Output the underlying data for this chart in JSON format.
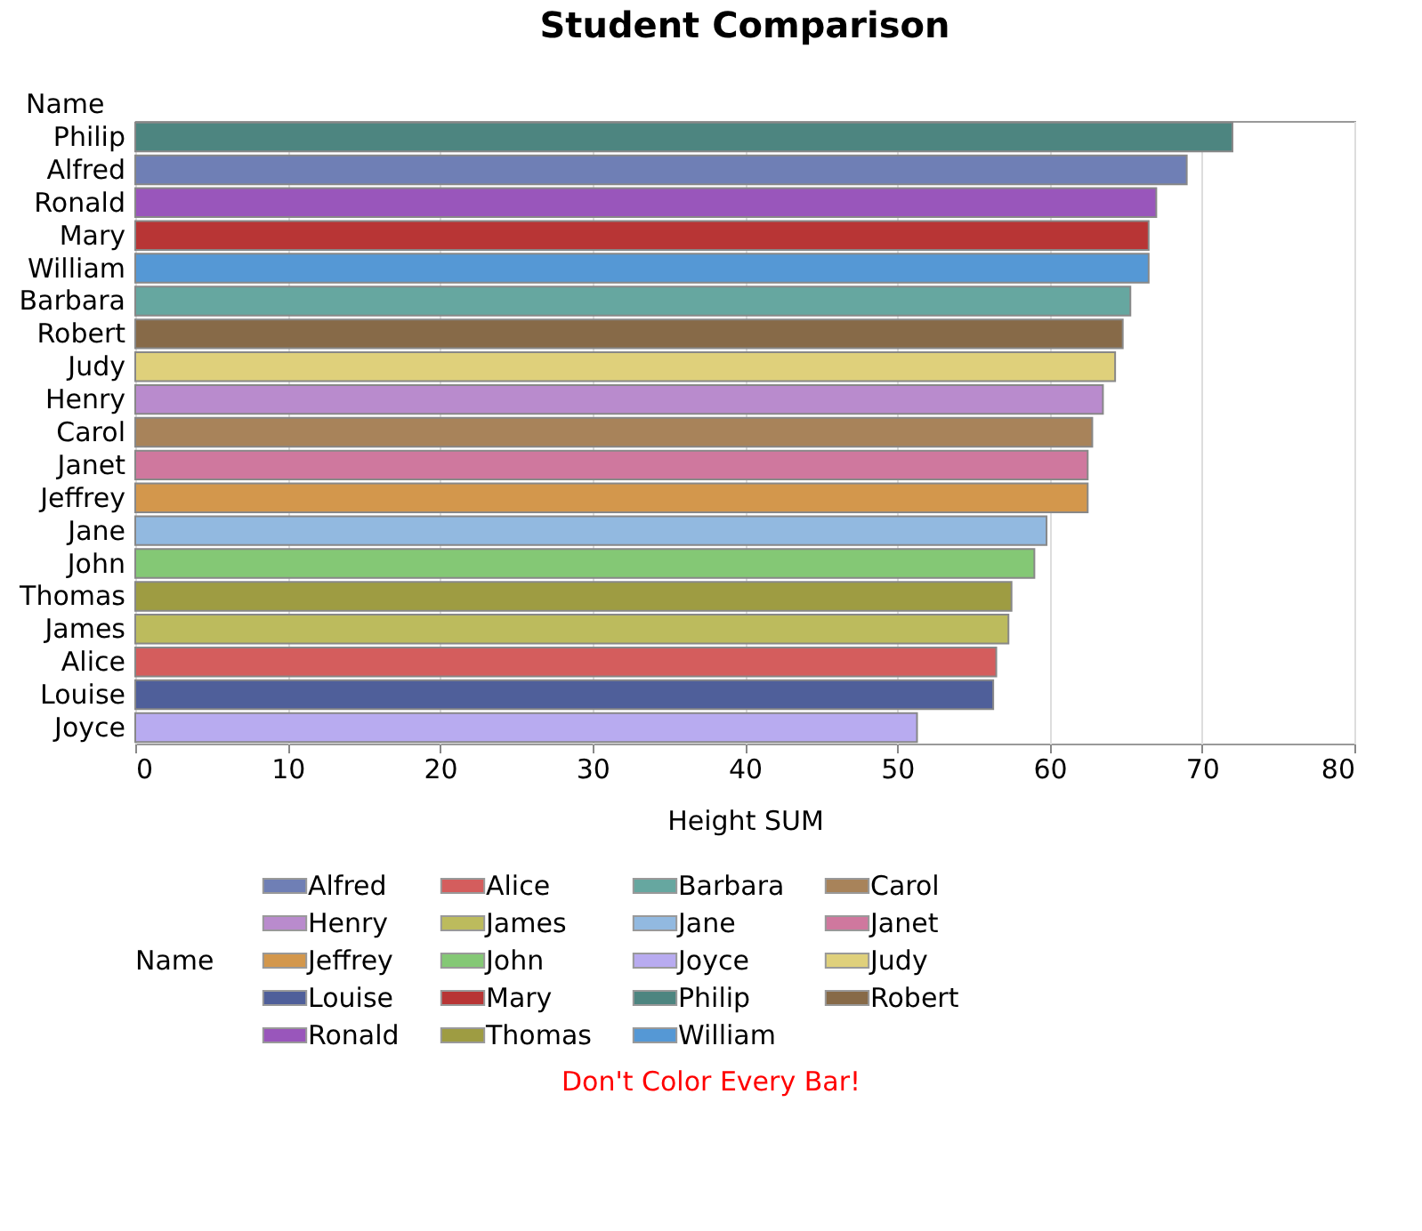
{
  "chart_data": {
    "type": "bar",
    "orientation": "horizontal",
    "title": "Student Comparison",
    "xlabel": "Height SUM",
    "ylabel": "Name",
    "legend_title": "Name",
    "legend": "bottom",
    "grid": "x",
    "categories": [
      "Philip",
      "Alfred",
      "Ronald",
      "Mary",
      "William",
      "Barbara",
      "Robert",
      "Judy",
      "Henry",
      "Carol",
      "Janet",
      "Jeffrey",
      "Jane",
      "John",
      "Thomas",
      "James",
      "Alice",
      "Louise",
      "Joyce"
    ],
    "xlim": [
      0,
      80
    ],
    "xticks": [
      0,
      10,
      20,
      30,
      40,
      50,
      60,
      70,
      80
    ],
    "series": [
      {
        "name": "Alfred",
        "color": "#6f7fb5",
        "values": [
          null,
          69,
          null,
          null,
          null,
          null,
          null,
          null,
          null,
          null,
          null,
          null,
          null,
          null,
          null,
          null,
          null,
          null,
          null
        ]
      },
      {
        "name": "Alice",
        "color": "#d45d5d",
        "values": [
          null,
          null,
          null,
          null,
          null,
          null,
          null,
          null,
          null,
          null,
          null,
          null,
          null,
          null,
          null,
          null,
          56.5,
          null,
          null
        ]
      },
      {
        "name": "Barbara",
        "color": "#66a7a0",
        "values": [
          null,
          null,
          null,
          null,
          null,
          65.3,
          null,
          null,
          null,
          null,
          null,
          null,
          null,
          null,
          null,
          null,
          null,
          null,
          null
        ]
      },
      {
        "name": "Carol",
        "color": "#a8835a",
        "values": [
          null,
          null,
          null,
          null,
          null,
          null,
          null,
          null,
          null,
          62.8,
          null,
          null,
          null,
          null,
          null,
          null,
          null,
          null,
          null
        ]
      },
      {
        "name": "Henry",
        "color": "#b98bcd",
        "values": [
          null,
          null,
          null,
          null,
          null,
          null,
          null,
          null,
          63.5,
          null,
          null,
          null,
          null,
          null,
          null,
          null,
          null,
          null,
          null
        ]
      },
      {
        "name": "James",
        "color": "#bcbb5d",
        "values": [
          null,
          null,
          null,
          null,
          null,
          null,
          null,
          null,
          null,
          null,
          null,
          null,
          null,
          null,
          null,
          57.3,
          null,
          null,
          null
        ]
      },
      {
        "name": "Jane",
        "color": "#92b9e0",
        "values": [
          null,
          null,
          null,
          null,
          null,
          null,
          null,
          null,
          null,
          null,
          null,
          null,
          59.8,
          null,
          null,
          null,
          null,
          null,
          null
        ]
      },
      {
        "name": "Janet",
        "color": "#cf789e",
        "values": [
          null,
          null,
          null,
          null,
          null,
          null,
          null,
          null,
          null,
          null,
          62.5,
          null,
          null,
          null,
          null,
          null,
          null,
          null,
          null
        ]
      },
      {
        "name": "Jeffrey",
        "color": "#d3974c",
        "values": [
          null,
          null,
          null,
          null,
          null,
          null,
          null,
          null,
          null,
          null,
          null,
          62.5,
          null,
          null,
          null,
          null,
          null,
          null,
          null
        ]
      },
      {
        "name": "John",
        "color": "#84c875",
        "values": [
          null,
          null,
          null,
          null,
          null,
          null,
          null,
          null,
          null,
          null,
          null,
          null,
          null,
          59,
          null,
          null,
          null,
          null,
          null
        ]
      },
      {
        "name": "Joyce",
        "color": "#b8abf0",
        "values": [
          null,
          null,
          null,
          null,
          null,
          null,
          null,
          null,
          null,
          null,
          null,
          null,
          null,
          null,
          null,
          null,
          null,
          null,
          51.3
        ]
      },
      {
        "name": "Judy",
        "color": "#dfd07b",
        "values": [
          null,
          null,
          null,
          null,
          null,
          null,
          null,
          64.3,
          null,
          null,
          null,
          null,
          null,
          null,
          null,
          null,
          null,
          null,
          null
        ]
      },
      {
        "name": "Louise",
        "color": "#4f5f9a",
        "values": [
          null,
          null,
          null,
          null,
          null,
          null,
          null,
          null,
          null,
          null,
          null,
          null,
          null,
          null,
          null,
          null,
          null,
          56.3,
          null
        ]
      },
      {
        "name": "Mary",
        "color": "#b83535",
        "values": [
          null,
          null,
          null,
          66.5,
          null,
          null,
          null,
          null,
          null,
          null,
          null,
          null,
          null,
          null,
          null,
          null,
          null,
          null,
          null
        ]
      },
      {
        "name": "Philip",
        "color": "#4d8580",
        "values": [
          72,
          null,
          null,
          null,
          null,
          null,
          null,
          null,
          null,
          null,
          null,
          null,
          null,
          null,
          null,
          null,
          null,
          null,
          null
        ]
      },
      {
        "name": "Robert",
        "color": "#876a48",
        "values": [
          null,
          null,
          null,
          null,
          null,
          null,
          64.8,
          null,
          null,
          null,
          null,
          null,
          null,
          null,
          null,
          null,
          null,
          null,
          null
        ]
      },
      {
        "name": "Ronald",
        "color": "#9956bb",
        "values": [
          null,
          null,
          67,
          null,
          null,
          null,
          null,
          null,
          null,
          null,
          null,
          null,
          null,
          null,
          null,
          null,
          null,
          null,
          null
        ]
      },
      {
        "name": "Thomas",
        "color": "#9e9c42",
        "values": [
          null,
          null,
          null,
          null,
          null,
          null,
          null,
          null,
          null,
          null,
          null,
          null,
          null,
          null,
          57.5,
          null,
          null,
          null,
          null
        ]
      },
      {
        "name": "William",
        "color": "#5598d5",
        "values": [
          null,
          null,
          null,
          null,
          66.5,
          null,
          null,
          null,
          null,
          null,
          null,
          null,
          null,
          null,
          null,
          null,
          null,
          null,
          null
        ]
      }
    ],
    "annotations": [
      "Don't Color Every Bar!"
    ]
  }
}
